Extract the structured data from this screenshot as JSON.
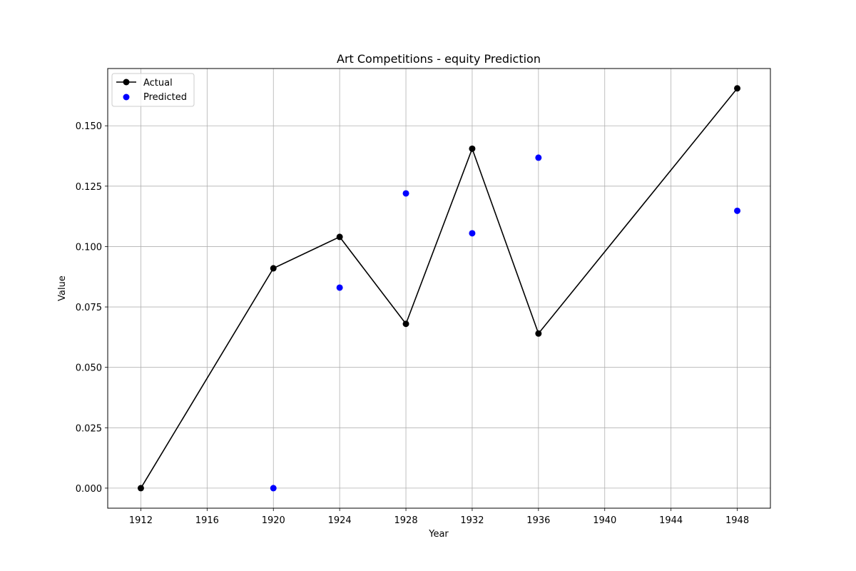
{
  "chart_data": {
    "type": "line",
    "title": "Art Competitions - equity Prediction",
    "xlabel": "Year",
    "ylabel": "Value",
    "xlim": [
      1910,
      1950
    ],
    "ylim": [
      -0.0083,
      0.1737
    ],
    "xticks": [
      1912,
      1916,
      1920,
      1924,
      1928,
      1932,
      1936,
      1940,
      1944,
      1948
    ],
    "yticks": [
      0.0,
      0.025,
      0.05,
      0.075,
      0.1,
      0.125,
      0.15
    ],
    "ytick_labels": [
      "0.000",
      "0.025",
      "0.050",
      "0.075",
      "0.100",
      "0.125",
      "0.150"
    ],
    "grid": true,
    "legend_position": "top-left",
    "series": [
      {
        "name": "Actual",
        "style": "line-marker",
        "color": "#000000",
        "x": [
          1912,
          1920,
          1924,
          1928,
          1932,
          1936,
          1948
        ],
        "y": [
          0.0,
          0.091,
          0.104,
          0.068,
          0.1405,
          0.064,
          0.1655
        ]
      },
      {
        "name": "Predicted",
        "style": "scatter",
        "color": "#0000ff",
        "x": [
          1920,
          1924,
          1928,
          1932,
          1936,
          1948
        ],
        "y": [
          0.0,
          0.083,
          0.122,
          0.1055,
          0.1368,
          0.1148
        ]
      }
    ]
  }
}
